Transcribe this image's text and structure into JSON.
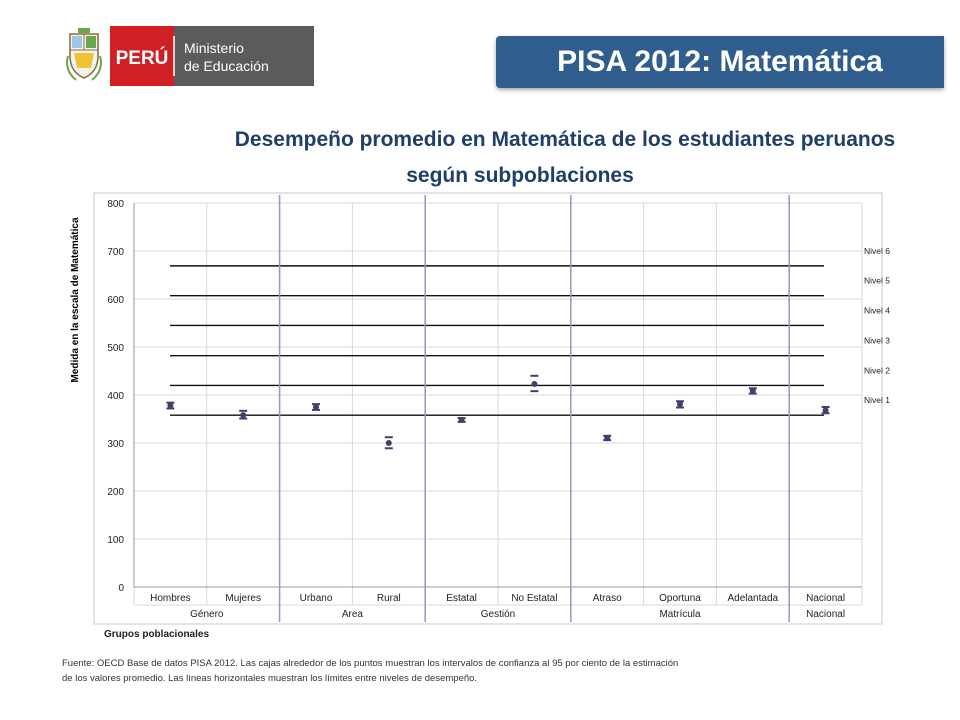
{
  "logo": {
    "country": "PERÚ",
    "ministry_line1": "Ministerio",
    "ministry_line2": "de Educación",
    "crest_icon": "peru-coat-of-arms-icon",
    "colors": {
      "red": "#d11f26",
      "gray": "#5b5b5b"
    }
  },
  "banner": {
    "title": "PISA 2012: Matemática",
    "color": "#2f5e8e"
  },
  "page_title": {
    "line1": "Desempeño promedio en Matemática de los estudiantes peruanos",
    "line2": "según subpoblaciones"
  },
  "source_note": {
    "line1": "Fuente: OECD Base de datos PISA 2012. Las cajas alrededor de los puntos muestran los intervalos de confianza al 95 por ciento de la estimación",
    "line2": "de los valores promedio. Las líneas horizontales muestran los límites entre niveles de desempeño."
  },
  "chart_data": {
    "type": "scatter",
    "ylabel": "Medida en la escala de Matemática",
    "xlabel": "Grupos poblacionales",
    "ylim": [
      0,
      800
    ],
    "yticks": [
      "0",
      "100",
      "200",
      "300",
      "400",
      "500",
      "600",
      "700",
      "800"
    ],
    "grid": true,
    "categories": [
      "Hombres",
      "Mujeres",
      "Urbano",
      "Rural",
      "Estatal",
      "No Estatal",
      "Atraso",
      "Oportuna",
      "Adelantada",
      "Nacional"
    ],
    "groups": [
      {
        "label": "Género",
        "categories": [
          "Hombres",
          "Mujeres"
        ]
      },
      {
        "label": "Area",
        "categories": [
          "Urbano",
          "Rural"
        ]
      },
      {
        "label": "Gestión",
        "categories": [
          "Estatal",
          "No Estatal"
        ]
      },
      {
        "label": "Matrícula",
        "categories": [
          "Atraso",
          "Oportuna",
          "Adelantada"
        ]
      },
      {
        "label": "Nacional",
        "categories": []
      }
    ],
    "values": [
      378,
      358,
      375,
      300,
      348,
      423,
      310,
      381,
      409,
      368
    ],
    "ci_low": [
      372,
      351,
      369,
      289,
      344,
      408,
      306,
      374,
      403,
      362
    ],
    "ci_high": [
      384,
      367,
      381,
      312,
      352,
      440,
      315,
      387,
      414,
      375
    ],
    "levels": [
      {
        "label": "Nivel 1",
        "value": 358
      },
      {
        "label": "Nivel 2",
        "value": 420
      },
      {
        "label": "Nivel 3",
        "value": 482
      },
      {
        "label": "Nivel 4",
        "value": 545
      },
      {
        "label": "Nivel 5",
        "value": 607
      },
      {
        "label": "Nivel 6",
        "value": 669
      }
    ],
    "colors": {
      "marker": "#4b3a6b",
      "separator": "#a48fbf",
      "level_line": "#111111",
      "grid": "#d9d9d9"
    }
  }
}
